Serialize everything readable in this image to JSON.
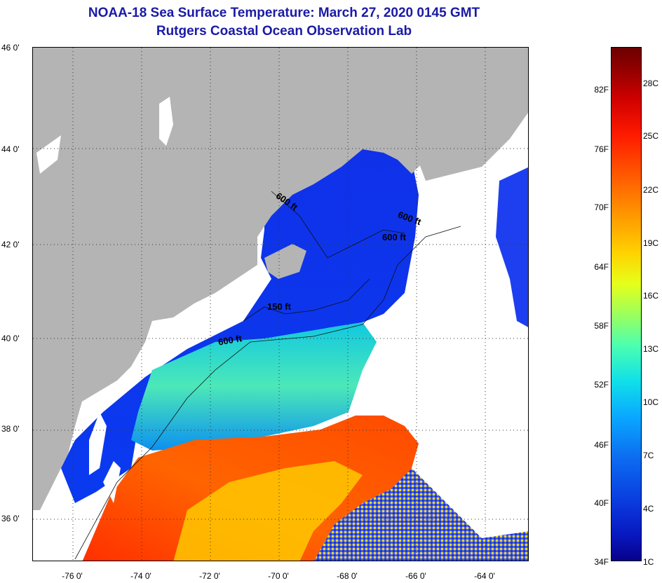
{
  "title": {
    "line1": "NOAA-18 Sea Surface Temperature:  March 27, 2020 0145 GMT",
    "line2": "Rutgers Coastal Ocean Observation Lab"
  },
  "map": {
    "lat_labels": [
      "46 0'",
      "44 0'",
      "42 0'",
      "40 0'",
      "38 0'",
      "36 0'"
    ],
    "lon_labels": [
      "-76 0'",
      "-74 0'",
      "-72 0'",
      "-70 0'",
      "-68 0'",
      "-66 0'",
      "-64 0'"
    ],
    "isobath_labels": [
      "600 ft",
      "600 ft",
      "600 ft",
      "150 ft",
      "600 ft"
    ],
    "colors": {
      "land": "#b4b4b4",
      "no_data": "#ffffff",
      "cold": "#0a2ce6",
      "warm": "#ff2a00"
    }
  },
  "colorbar": {
    "fahrenheit": [
      "82F",
      "76F",
      "70F",
      "64F",
      "58F",
      "52F",
      "46F",
      "40F",
      "34F"
    ],
    "celsius": [
      "28C",
      "25C",
      "22C",
      "19C",
      "16C",
      "13C",
      "10C",
      "7C",
      "4C",
      "1C"
    ]
  }
}
